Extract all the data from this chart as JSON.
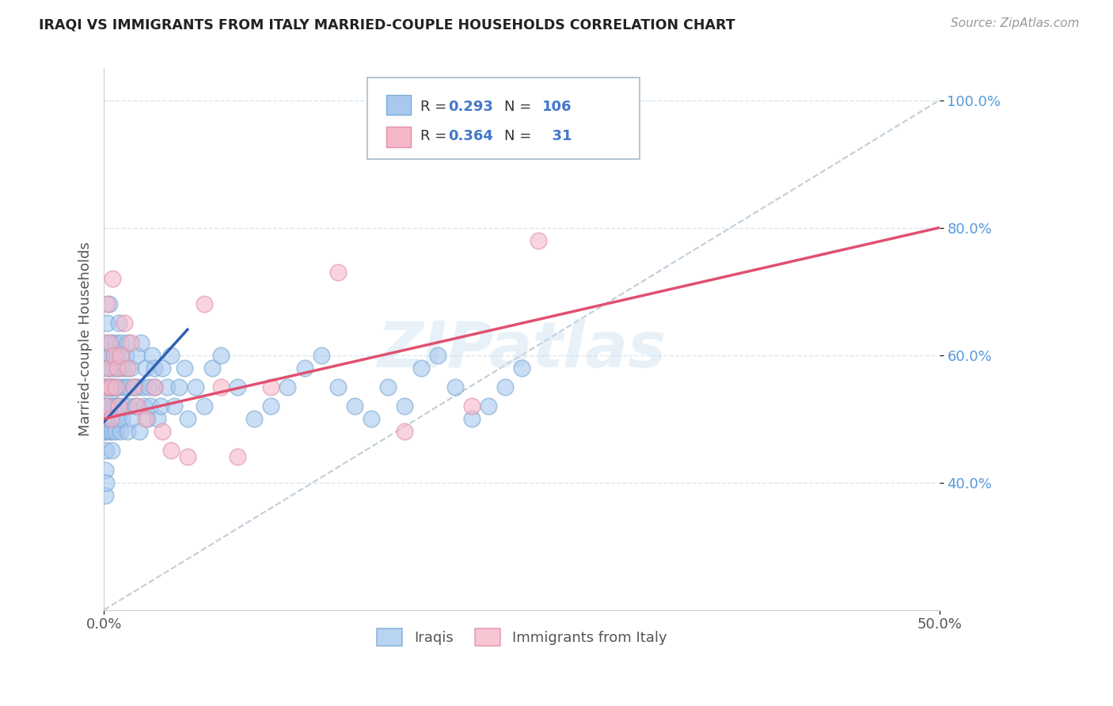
{
  "title": "IRAQI VS IMMIGRANTS FROM ITALY MARRIED-COUPLE HOUSEHOLDS CORRELATION CHART",
  "source": "Source: ZipAtlas.com",
  "ylabel": "Married-couple Households",
  "xmin": 0.0,
  "xmax": 50.0,
  "ymin": 20.0,
  "ymax": 105.0,
  "yticks": [
    40.0,
    60.0,
    80.0,
    100.0
  ],
  "ytick_labels": [
    "40.0%",
    "60.0%",
    "80.0%",
    "100.0%"
  ],
  "watermark": "ZIPatlas",
  "blue_color": "#a8c8f0",
  "pink_color": "#f5b8c8",
  "blue_edge": "#7aaad0",
  "pink_edge": "#e090a8",
  "trend_blue_color": "#3060b0",
  "trend_pink_color": "#e05070",
  "ref_line_color": "#c0cdd8",
  "legend_R1": "0.293",
  "legend_N1": "106",
  "legend_R2": "0.364",
  "legend_N2": "31",
  "legend_text_color": "#333333",
  "legend_num_color": "#4477cc",
  "ytick_color": "#5599dd",
  "xtick_color": "#555555",
  "title_color": "#222222",
  "source_color": "#999999",
  "ylabel_color": "#555555",
  "grid_color": "#d8e8f0",
  "spine_color": "#cccccc",
  "iraqi_x": [
    0.05,
    0.07,
    0.08,
    0.1,
    0.1,
    0.12,
    0.13,
    0.14,
    0.15,
    0.15,
    0.17,
    0.18,
    0.2,
    0.2,
    0.22,
    0.25,
    0.25,
    0.28,
    0.3,
    0.3,
    0.32,
    0.35,
    0.35,
    0.38,
    0.4,
    0.4,
    0.42,
    0.45,
    0.45,
    0.5,
    0.5,
    0.55,
    0.55,
    0.6,
    0.6,
    0.65,
    0.7,
    0.7,
    0.75,
    0.8,
    0.8,
    0.85,
    0.9,
    0.9,
    0.95,
    1.0,
    1.0,
    1.05,
    1.1,
    1.1,
    1.2,
    1.2,
    1.3,
    1.3,
    1.4,
    1.4,
    1.5,
    1.5,
    1.6,
    1.7,
    1.8,
    1.9,
    2.0,
    2.0,
    2.1,
    2.2,
    2.3,
    2.4,
    2.5,
    2.6,
    2.7,
    2.8,
    2.9,
    3.0,
    3.0,
    3.2,
    3.4,
    3.5,
    3.8,
    4.0,
    4.2,
    4.5,
    4.8,
    5.0,
    5.5,
    6.0,
    6.5,
    7.0,
    8.0,
    9.0,
    10.0,
    11.0,
    12.0,
    13.0,
    14.0,
    15.0,
    16.0,
    17.0,
    18.0,
    19.0,
    20.0,
    21.0,
    22.0,
    23.0,
    24.0,
    25.0
  ],
  "iraqi_y": [
    55,
    48,
    52,
    42,
    38,
    50,
    45,
    40,
    55,
    62,
    50,
    58,
    65,
    48,
    52,
    60,
    55,
    50,
    55,
    68,
    52,
    58,
    48,
    54,
    60,
    55,
    50,
    62,
    45,
    55,
    48,
    58,
    52,
    60,
    50,
    55,
    48,
    62,
    52,
    58,
    60,
    55,
    50,
    65,
    52,
    58,
    48,
    62,
    55,
    50,
    52,
    58,
    60,
    55,
    48,
    62,
    55,
    52,
    58,
    50,
    55,
    52,
    60,
    55,
    48,
    62,
    55,
    52,
    58,
    50,
    55,
    52,
    60,
    58,
    55,
    50,
    52,
    58,
    55,
    60,
    52,
    55,
    58,
    50,
    55,
    52,
    58,
    60,
    55,
    50,
    52,
    55,
    58,
    60,
    55,
    52,
    50,
    55,
    52,
    58,
    60,
    55,
    50,
    52,
    55,
    58
  ],
  "italy_x": [
    0.1,
    0.15,
    0.2,
    0.25,
    0.3,
    0.35,
    0.4,
    0.5,
    0.6,
    0.7,
    0.8,
    0.9,
    1.0,
    1.2,
    1.4,
    1.6,
    1.8,
    2.0,
    2.5,
    3.0,
    3.5,
    4.0,
    5.0,
    6.0,
    7.0,
    8.0,
    10.0,
    14.0,
    18.0,
    22.0,
    26.0
  ],
  "italy_y": [
    55,
    52,
    68,
    58,
    62,
    55,
    50,
    72,
    60,
    55,
    58,
    52,
    60,
    65,
    58,
    62,
    55,
    52,
    50,
    55,
    48,
    45,
    44,
    68,
    55,
    44,
    55,
    73,
    48,
    52,
    78
  ],
  "blue_trend_x0": 0.0,
  "blue_trend_y0": 49.5,
  "blue_trend_x1": 5.0,
  "blue_trend_y1": 64.0,
  "pink_trend_x0": 0.0,
  "pink_trend_y0": 50.0,
  "pink_trend_x1": 50.0,
  "pink_trend_y1": 80.0,
  "ref_x0": 0.0,
  "ref_y0": 20.0,
  "ref_x1": 50.0,
  "ref_y1": 100.0
}
